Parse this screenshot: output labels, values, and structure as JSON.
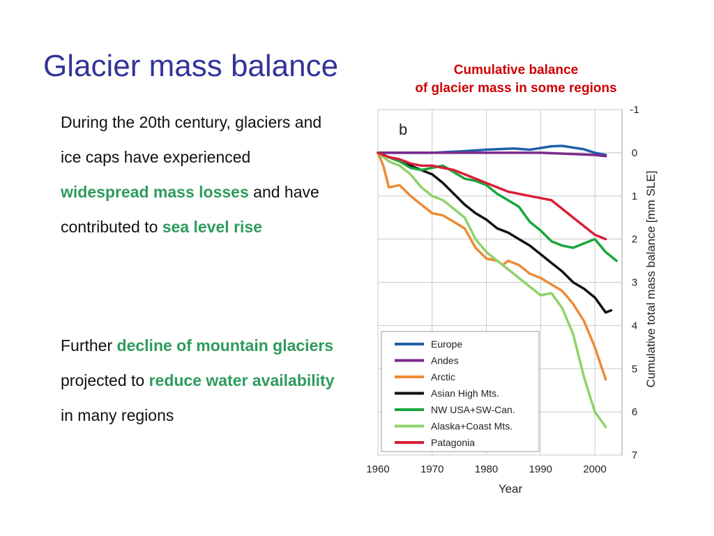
{
  "slide": {
    "title": "Glacier mass balance",
    "caption_line1": "Cumulative balance",
    "caption_line2": "of glacier mass in some regions"
  },
  "text": {
    "p1": {
      "a": "During the 20th century, glaciers and ice caps have experienced ",
      "b": "widespread mass losses",
      "c": " and have contributed to ",
      "d": "sea level rise"
    },
    "p2": {
      "a": "Further ",
      "b": "decline of mountain glaciers",
      "c": " projected to ",
      "d": "reduce water availability",
      "e": " in many regions"
    }
  },
  "colors": {
    "title": "#333399",
    "caption": "#cc0000",
    "highlight": "#2e9a5c"
  },
  "chart_data": {
    "type": "line",
    "panel_label": "b",
    "xlabel": "Year",
    "ylabel": "Cumulative total mass balance [mm SLE]",
    "xlim": [
      1960,
      2005
    ],
    "ylim": [
      -1,
      7
    ],
    "y_inverted": true,
    "y_axis_side": "right",
    "x_ticks": [
      1960,
      1970,
      1980,
      1990,
      2000
    ],
    "y_ticks": [
      -1,
      0,
      1,
      2,
      3,
      4,
      5,
      6,
      7
    ],
    "grid": true,
    "legend_position": "bottom-left",
    "series": [
      {
        "name": "Europe",
        "color": "#1f5fa8",
        "x": [
          1960,
          1965,
          1970,
          1975,
          1980,
          1985,
          1988,
          1990,
          1992,
          1994,
          1996,
          1998,
          2000,
          2002
        ],
        "y": [
          0.0,
          0.0,
          0.0,
          -0.03,
          -0.07,
          -0.1,
          -0.07,
          -0.11,
          -0.15,
          -0.16,
          -0.12,
          -0.08,
          0.0,
          0.05
        ]
      },
      {
        "name": "Andes",
        "color": "#7b2a8c",
        "x": [
          1960,
          1970,
          1980,
          1990,
          2000,
          2002
        ],
        "y": [
          0.0,
          0.0,
          0.0,
          0.0,
          0.05,
          0.08
        ]
      },
      {
        "name": "Arctic",
        "color": "#ec8a35",
        "x": [
          1960,
          1961,
          1962,
          1964,
          1966,
          1968,
          1970,
          1972,
          1974,
          1976,
          1978,
          1980,
          1982,
          1983,
          1984,
          1986,
          1988,
          1990,
          1992,
          1994,
          1996,
          1998,
          2000,
          2002
        ],
        "y": [
          0.0,
          0.3,
          0.8,
          0.75,
          1.0,
          1.2,
          1.4,
          1.45,
          1.6,
          1.75,
          2.2,
          2.45,
          2.5,
          2.6,
          2.5,
          2.6,
          2.8,
          2.9,
          3.05,
          3.2,
          3.5,
          3.9,
          4.5,
          5.25
        ]
      },
      {
        "name": "Asian High Mts.",
        "color": "#111111",
        "x": [
          1960,
          1962,
          1964,
          1966,
          1968,
          1970,
          1972,
          1974,
          1976,
          1978,
          1980,
          1982,
          1984,
          1986,
          1988,
          1990,
          1992,
          1994,
          1996,
          1998,
          2000,
          2002,
          2003
        ],
        "y": [
          0.0,
          0.1,
          0.2,
          0.3,
          0.4,
          0.5,
          0.7,
          0.95,
          1.2,
          1.4,
          1.55,
          1.75,
          1.85,
          2.0,
          2.15,
          2.35,
          2.55,
          2.75,
          3.0,
          3.15,
          3.35,
          3.7,
          3.65
        ]
      },
      {
        "name": "NW USA+SW-Can.",
        "color": "#1aa63c",
        "x": [
          1960,
          1962,
          1964,
          1966,
          1968,
          1970,
          1972,
          1974,
          1976,
          1978,
          1980,
          1982,
          1984,
          1986,
          1988,
          1990,
          1992,
          1994,
          1996,
          1998,
          2000,
          2002,
          2004
        ],
        "y": [
          0.0,
          0.1,
          0.2,
          0.35,
          0.4,
          0.35,
          0.3,
          0.45,
          0.6,
          0.65,
          0.75,
          0.95,
          1.1,
          1.25,
          1.6,
          1.8,
          2.05,
          2.15,
          2.2,
          2.1,
          2.0,
          2.3,
          2.5
        ]
      },
      {
        "name": "Alaska+Coast Mts.",
        "color": "#8fd26a",
        "x": [
          1960,
          1962,
          1964,
          1966,
          1968,
          1970,
          1972,
          1974,
          1976,
          1978,
          1980,
          1982,
          1984,
          1986,
          1988,
          1990,
          1992,
          1994,
          1996,
          1998,
          2000,
          2002
        ],
        "y": [
          0.0,
          0.2,
          0.3,
          0.5,
          0.8,
          1.0,
          1.1,
          1.3,
          1.5,
          2.0,
          2.3,
          2.5,
          2.7,
          2.9,
          3.1,
          3.3,
          3.25,
          3.6,
          4.2,
          5.2,
          6.0,
          6.35
        ]
      },
      {
        "name": "Patagonia",
        "color": "#d81f3a",
        "x": [
          1960,
          1962,
          1964,
          1966,
          1968,
          1970,
          1972,
          1974,
          1976,
          1978,
          1980,
          1982,
          1984,
          1986,
          1988,
          1990,
          1992,
          1994,
          1996,
          1998,
          2000,
          2002
        ],
        "y": [
          0.0,
          0.1,
          0.15,
          0.25,
          0.3,
          0.3,
          0.35,
          0.4,
          0.5,
          0.6,
          0.7,
          0.8,
          0.9,
          0.95,
          1.0,
          1.05,
          1.1,
          1.3,
          1.5,
          1.7,
          1.9,
          2.0
        ]
      }
    ]
  }
}
